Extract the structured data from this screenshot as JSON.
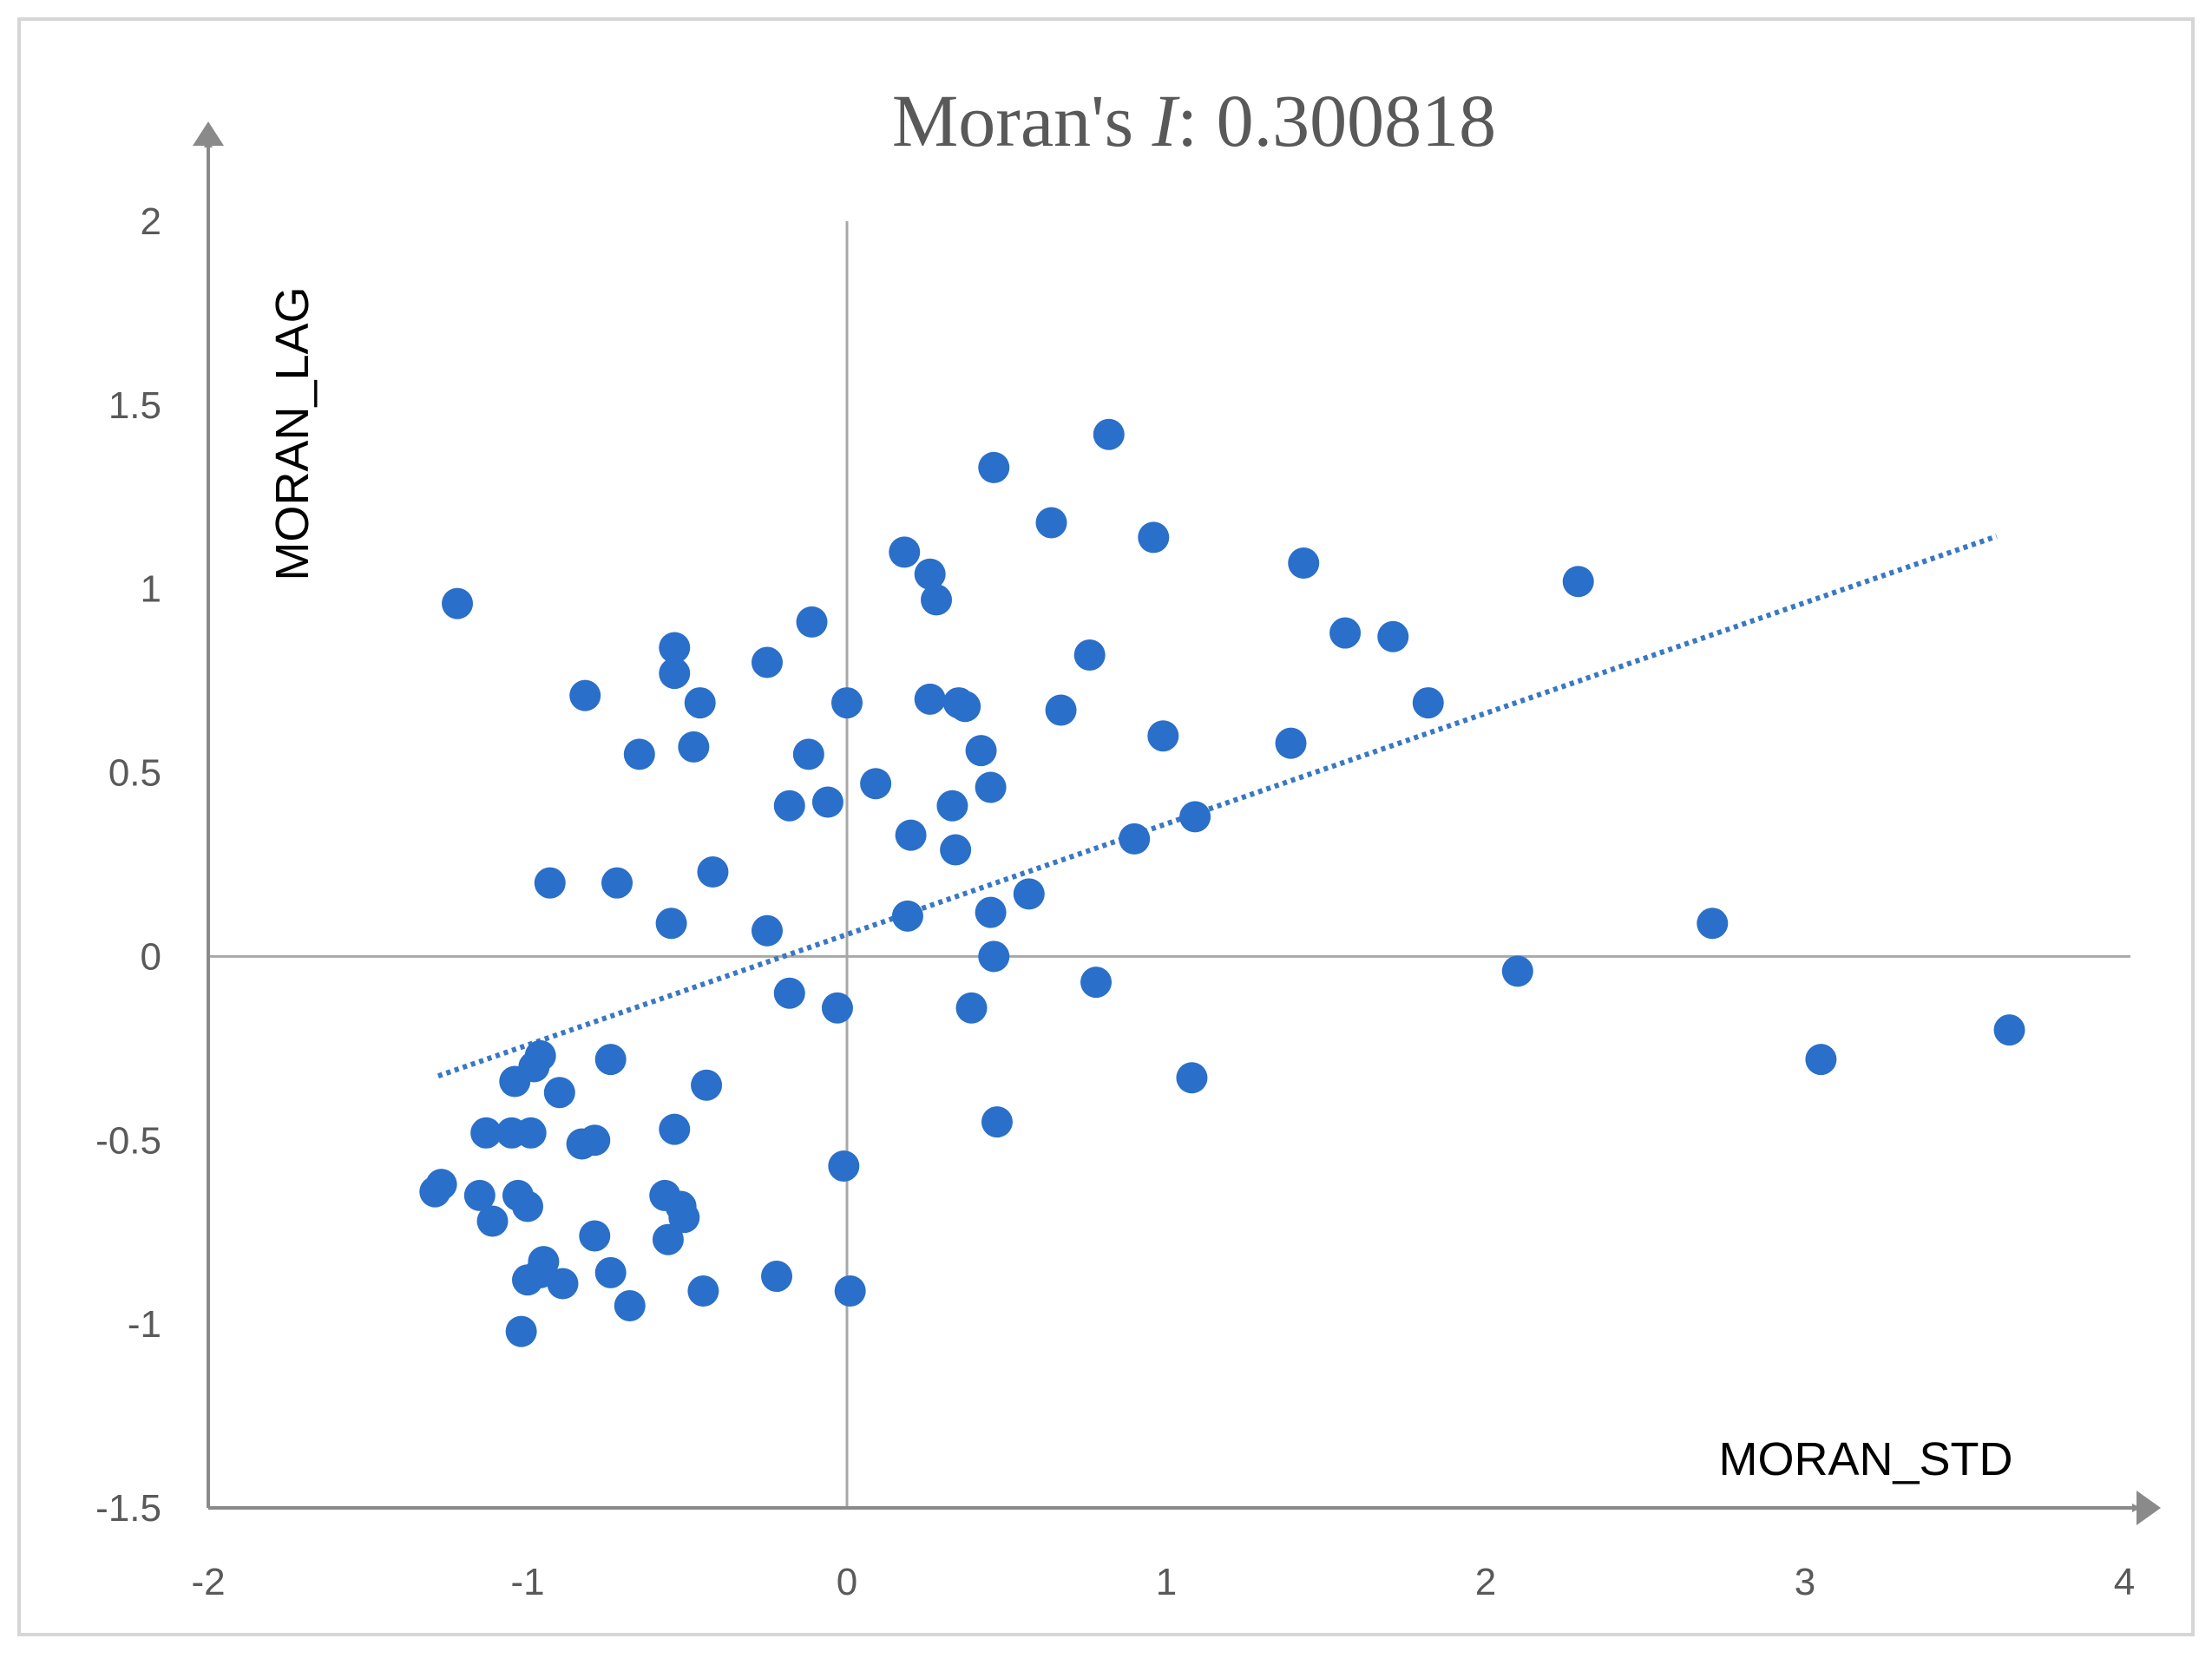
{
  "chart_data": {
    "type": "scatter",
    "title_prefix": "Moran's ",
    "title_italic": "I",
    "title_suffix": ": 0.300818",
    "xlabel": "MORAN_STD",
    "ylabel": "MORAN_LAG",
    "xlim": [
      -2,
      4
    ],
    "ylim": [
      -1.5,
      2
    ],
    "x_ticks": [
      "-2",
      "-1",
      "0",
      "1",
      "2",
      "3",
      "4"
    ],
    "y_ticks": [
      "-1.5",
      "-1",
      "-0.5",
      "0",
      "0.5",
      "1",
      "1.5",
      "2"
    ],
    "grid": false,
    "quadrant_lines": true,
    "marker_color": "#2a6fc9",
    "trendline_color": "#3a78c2",
    "axis_color": "#8a8a8a",
    "moran_i": 0.300818,
    "trendline": {
      "x": [
        -1.28,
        3.6
      ],
      "intercept": 0.06
    },
    "series": [
      {
        "name": "observations",
        "points": [
          [
            -1.22,
            0.96
          ],
          [
            0.82,
            1.42
          ],
          [
            0.46,
            1.33
          ],
          [
            0.64,
            1.18
          ],
          [
            0.96,
            1.14
          ],
          [
            0.18,
            1.1
          ],
          [
            0.26,
            1.04
          ],
          [
            0.28,
            0.97
          ],
          [
            1.43,
            1.07
          ],
          [
            2.29,
            1.02
          ],
          [
            -0.11,
            0.91
          ],
          [
            -0.54,
            0.84
          ],
          [
            -0.54,
            0.77
          ],
          [
            -0.25,
            0.8
          ],
          [
            -0.82,
            0.71
          ],
          [
            -0.46,
            0.69
          ],
          [
            0.0,
            0.69
          ],
          [
            0.26,
            0.7
          ],
          [
            0.35,
            0.69
          ],
          [
            0.37,
            0.68
          ],
          [
            0.67,
            0.67
          ],
          [
            0.76,
            0.82
          ],
          [
            1.56,
            0.88
          ],
          [
            1.71,
            0.87
          ],
          [
            1.82,
            0.69
          ],
          [
            -0.65,
            0.55
          ],
          [
            -0.48,
            0.57
          ],
          [
            -0.12,
            0.55
          ],
          [
            0.42,
            0.56
          ],
          [
            0.99,
            0.6
          ],
          [
            1.39,
            0.58
          ],
          [
            0.09,
            0.47
          ],
          [
            0.45,
            0.46
          ],
          [
            -0.18,
            0.41
          ],
          [
            -0.06,
            0.42
          ],
          [
            0.33,
            0.41
          ],
          [
            0.2,
            0.33
          ],
          [
            0.34,
            0.29
          ],
          [
            0.9,
            0.32
          ],
          [
            1.09,
            0.38
          ],
          [
            -0.93,
            0.2
          ],
          [
            -0.72,
            0.2
          ],
          [
            -0.42,
            0.23
          ],
          [
            0.57,
            0.17
          ],
          [
            -0.55,
            0.09
          ],
          [
            -0.25,
            0.07
          ],
          [
            0.19,
            0.11
          ],
          [
            0.45,
            0.12
          ],
          [
            0.46,
            0.0
          ],
          [
            2.71,
            0.09
          ],
          [
            2.1,
            -0.04
          ],
          [
            0.78,
            -0.07
          ],
          [
            -0.18,
            -0.1
          ],
          [
            -0.03,
            -0.14
          ],
          [
            0.39,
            -0.14
          ],
          [
            -0.96,
            -0.27
          ],
          [
            -0.98,
            -0.3
          ],
          [
            -0.74,
            -0.28
          ],
          [
            -1.04,
            -0.34
          ],
          [
            -0.9,
            -0.37
          ],
          [
            -0.44,
            -0.35
          ],
          [
            1.08,
            -0.33
          ],
          [
            3.05,
            -0.28
          ],
          [
            3.64,
            -0.2
          ],
          [
            -1.13,
            -0.48
          ],
          [
            -1.05,
            -0.48
          ],
          [
            -0.99,
            -0.48
          ],
          [
            -0.83,
            -0.51
          ],
          [
            -0.79,
            -0.5
          ],
          [
            -0.54,
            -0.47
          ],
          [
            0.47,
            -0.45
          ],
          [
            -0.01,
            -0.57
          ],
          [
            -1.29,
            -0.64
          ],
          [
            -1.27,
            -0.62
          ],
          [
            -1.15,
            -0.65
          ],
          [
            -1.03,
            -0.65
          ],
          [
            -1.11,
            -0.72
          ],
          [
            -1.0,
            -0.68
          ],
          [
            -0.57,
            -0.65
          ],
          [
            -0.51,
            -0.71
          ],
          [
            -0.52,
            -0.68
          ],
          [
            -0.56,
            -0.77
          ],
          [
            -0.79,
            -0.76
          ],
          [
            -0.95,
            -0.83
          ],
          [
            -1.0,
            -0.88
          ],
          [
            -0.96,
            -0.86
          ],
          [
            -0.89,
            -0.89
          ],
          [
            -0.74,
            -0.86
          ],
          [
            -0.68,
            -0.95
          ],
          [
            -0.45,
            -0.91
          ],
          [
            -0.22,
            -0.87
          ],
          [
            0.01,
            -0.91
          ],
          [
            -1.02,
            -1.02
          ]
        ]
      }
    ]
  }
}
